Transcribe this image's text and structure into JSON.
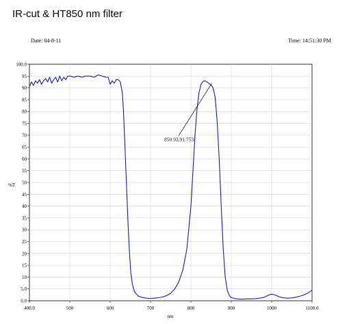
{
  "chart_data": {
    "type": "line",
    "title": "IR-cut & HT850 nm filter",
    "date_label": "Date: 04-8-11",
    "time_label": "Time: 14:51:30 PM",
    "xlabel": "nm",
    "ylabel": "%T",
    "xlim": [
      400,
      1100
    ],
    "ylim": [
      0,
      100
    ],
    "x_ticks": [
      "400.0",
      "500",
      "600",
      "700",
      "800",
      "900",
      "1000",
      "1100.0"
    ],
    "y_ticks": [
      "0.0",
      "5.0",
      "10",
      "15",
      "20",
      "25",
      "30",
      "35",
      "40",
      "45",
      "50",
      "55",
      "60",
      "65",
      "70",
      "75",
      "80",
      "85",
      "90",
      "95",
      "100.0"
    ],
    "grid": true,
    "line_color": "#1a1aa6",
    "annotation": {
      "text": "850.93,91.753",
      "x": 850.93,
      "y": 91.753
    },
    "series": [
      {
        "x": [
          400,
          405,
          410,
          415,
          420,
          425,
          430,
          435,
          440,
          445,
          450,
          455,
          460,
          465,
          470,
          475,
          480,
          485,
          490,
          495,
          500,
          510,
          520,
          530,
          540,
          550,
          560,
          570,
          580,
          590,
          595,
          600,
          605,
          610,
          615,
          620,
          625,
          630,
          633,
          636,
          639,
          642,
          645,
          648,
          651,
          655,
          660,
          665,
          670,
          675,
          680,
          685,
          690,
          695,
          700,
          710,
          720,
          730,
          740,
          750,
          760,
          770,
          780,
          790,
          800,
          805,
          810,
          815,
          820,
          825,
          830,
          835,
          840,
          845,
          850,
          855,
          860,
          865,
          870,
          875,
          880,
          885,
          890,
          895,
          900,
          910,
          920,
          930,
          940,
          950,
          960,
          970,
          980,
          990,
          1000,
          1005,
          1010,
          1020,
          1030,
          1040,
          1050,
          1060,
          1070,
          1080,
          1090,
          1100
        ],
        "y": [
          90.5,
          92.5,
          91,
          93,
          92,
          93.5,
          91.5,
          93,
          94,
          92.5,
          94.5,
          92,
          93.5,
          94.5,
          92.5,
          95,
          93,
          94.5,
          93.5,
          95,
          95,
          94.5,
          95,
          94.5,
          95,
          95,
          94.5,
          95.5,
          95,
          94.5,
          94.5,
          91.5,
          93,
          92,
          93.5,
          93.5,
          92.5,
          88,
          80,
          68,
          55,
          42,
          30,
          20,
          12,
          7,
          4,
          2.8,
          2,
          1.6,
          1.4,
          1.2,
          1.1,
          1,
          1,
          1.1,
          1.3,
          1.6,
          2.2,
          3.2,
          5,
          8,
          13,
          22,
          40,
          55,
          70,
          81,
          88,
          91.5,
          92.8,
          93,
          92.5,
          91.8,
          91.2,
          90,
          86,
          76,
          60,
          40,
          22,
          10,
          4.5,
          2.2,
          1.3,
          0.9,
          0.7,
          0.7,
          0.8,
          0.8,
          0.9,
          1.1,
          1.4,
          2.2,
          2.8,
          2.6,
          2.3,
          1.6,
          1.2,
          1.1,
          1.2,
          1.5,
          1.9,
          2.5,
          3.3,
          4.5
        ]
      }
    ]
  }
}
